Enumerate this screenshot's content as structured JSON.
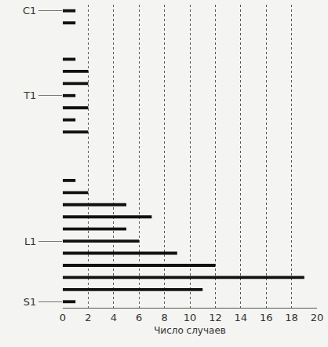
{
  "chart_data": {
    "type": "bar",
    "orientation": "horizontal",
    "x_label": "Число случаев",
    "categories": [
      "C1",
      null,
      null,
      null,
      null,
      null,
      null,
      "T1",
      null,
      null,
      null,
      null,
      null,
      null,
      null,
      null,
      null,
      null,
      null,
      "L1",
      null,
      null,
      null,
      null,
      "S1"
    ],
    "values": [
      1,
      1,
      0,
      0,
      1,
      2,
      2,
      1,
      2,
      1,
      2,
      0,
      0,
      0,
      1,
      2,
      5,
      7,
      5,
      6,
      9,
      12,
      19,
      11,
      1
    ],
    "color": "#111111",
    "xlim": [
      0,
      20
    ],
    "xticks": [
      0,
      2,
      4,
      6,
      8,
      10,
      12,
      14,
      16,
      18,
      20
    ],
    "grid": true
  }
}
